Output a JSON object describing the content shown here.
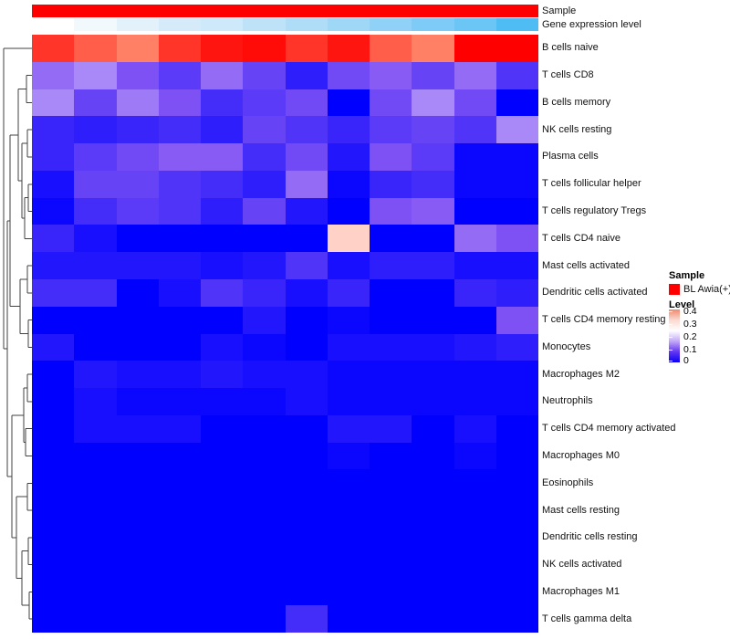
{
  "chart_data": {
    "type": "heatmap",
    "title": "",
    "n_columns": 12,
    "annotation_rows": [
      {
        "label": "Sample",
        "uniform_color": "#FF0000"
      },
      {
        "label": "Gene expression level",
        "column_colors": [
          "#FFFFFF",
          "#F2F9FD",
          "#E3F1FA",
          "#D6EBF9",
          "#CDE9FA",
          "#BEE3F9",
          "#AFDDF8",
          "#9FD7F7",
          "#8FD1F7",
          "#7DCBF6",
          "#6BC5F5",
          "#4FBCF4"
        ]
      }
    ],
    "row_labels": [
      "B cells naive",
      "T cells CD8",
      "B cells memory",
      "NK cells resting",
      "Plasma cells",
      "T cells follicular helper",
      "T cells regulatory  Tregs",
      "T cells CD4 naive",
      "Mast cells activated",
      "Dendritic cells activated",
      "T cells CD4 memory resting",
      "Monocytes",
      "Macrophages M2",
      "Neutrophils",
      "T cells CD4 memory activated",
      "Macrophages M0",
      "Eosinophils",
      "Mast cells resting",
      "Dendritic cells resting",
      "NK cells activated",
      "Macrophages M1",
      "T cells gamma delta"
    ],
    "values": [
      [
        0.41,
        0.37,
        0.34,
        0.41,
        0.44,
        0.45,
        0.41,
        0.44,
        0.37,
        0.34,
        0.46,
        0.46
      ],
      [
        0.13,
        0.15,
        0.11,
        0.08,
        0.13,
        0.09,
        0.04,
        0.1,
        0.12,
        0.09,
        0.13,
        0.07
      ],
      [
        0.15,
        0.09,
        0.14,
        0.11,
        0.06,
        0.08,
        0.1,
        0.0,
        0.1,
        0.15,
        0.1,
        0.0
      ],
      [
        0.05,
        0.04,
        0.05,
        0.06,
        0.04,
        0.09,
        0.07,
        0.05,
        0.08,
        0.09,
        0.07,
        0.15
      ],
      [
        0.05,
        0.08,
        0.1,
        0.12,
        0.12,
        0.06,
        0.1,
        0.03,
        0.11,
        0.08,
        0.01,
        0.01
      ],
      [
        0.02,
        0.09,
        0.09,
        0.07,
        0.06,
        0.04,
        0.13,
        0.01,
        0.05,
        0.06,
        0.01,
        0.01
      ],
      [
        0.01,
        0.06,
        0.08,
        0.07,
        0.04,
        0.09,
        0.03,
        0.0,
        0.11,
        0.12,
        0.0,
        0.0
      ],
      [
        0.05,
        0.02,
        0.0,
        0.0,
        0.0,
        0.0,
        0.0,
        0.27,
        0.0,
        0.0,
        0.13,
        0.11
      ],
      [
        0.03,
        0.03,
        0.03,
        0.03,
        0.02,
        0.03,
        0.07,
        0.02,
        0.04,
        0.04,
        0.02,
        0.02
      ],
      [
        0.06,
        0.06,
        0.0,
        0.02,
        0.07,
        0.05,
        0.02,
        0.05,
        0.0,
        0.0,
        0.05,
        0.04
      ],
      [
        0.0,
        0.0,
        0.0,
        0.0,
        0.0,
        0.03,
        0.0,
        0.01,
        0.0,
        0.0,
        0.0,
        0.11
      ],
      [
        0.03,
        0.0,
        0.0,
        0.0,
        0.02,
        0.01,
        0.0,
        0.02,
        0.02,
        0.02,
        0.03,
        0.04
      ],
      [
        0.0,
        0.03,
        0.02,
        0.02,
        0.03,
        0.02,
        0.02,
        0.01,
        0.01,
        0.01,
        0.01,
        0.01
      ],
      [
        0.0,
        0.02,
        0.01,
        0.01,
        0.01,
        0.01,
        0.02,
        0.01,
        0.01,
        0.01,
        0.01,
        0.01
      ],
      [
        0.0,
        0.02,
        0.02,
        0.02,
        0.0,
        0.0,
        0.0,
        0.03,
        0.03,
        0.0,
        0.02,
        0.0
      ],
      [
        0.0,
        0.0,
        0.0,
        0.0,
        0.0,
        0.0,
        0.0,
        0.01,
        0.0,
        0.0,
        0.01,
        0.0
      ],
      [
        0.0,
        0.0,
        0.0,
        0.0,
        0.0,
        0.0,
        0.0,
        0.0,
        0.0,
        0.0,
        0.0,
        0.0
      ],
      [
        0.0,
        0.0,
        0.0,
        0.0,
        0.0,
        0.0,
        0.0,
        0.0,
        0.0,
        0.0,
        0.0,
        0.0
      ],
      [
        0.0,
        0.0,
        0.0,
        0.0,
        0.0,
        0.0,
        0.0,
        0.0,
        0.0,
        0.0,
        0.0,
        0.0
      ],
      [
        0.0,
        0.0,
        0.0,
        0.0,
        0.0,
        0.0,
        0.0,
        0.0,
        0.0,
        0.0,
        0.0,
        0.0
      ],
      [
        0.0,
        0.0,
        0.0,
        0.0,
        0.0,
        0.0,
        0.0,
        0.0,
        0.0,
        0.0,
        0.0,
        0.0
      ],
      [
        0.0,
        0.0,
        0.0,
        0.0,
        0.0,
        0.0,
        0.06,
        0.0,
        0.0,
        0.0,
        0.0,
        0.0
      ]
    ],
    "colormap": {
      "vmin": 0,
      "vmax": 0.46,
      "stops": [
        {
          "t": 0.0,
          "color": "#0000FF"
        },
        {
          "t": 0.25,
          "color": "#8355F3"
        },
        {
          "t": 0.5,
          "color": "#FFFFFF"
        },
        {
          "t": 0.75,
          "color": "#FF7A5E"
        },
        {
          "t": 1.0,
          "color": "#FF0000"
        }
      ]
    },
    "legend": {
      "sample_title": "Sample",
      "sample_items": [
        {
          "label": "BL Awia(+)",
          "color": "#FF0000"
        }
      ],
      "level_title": "Level",
      "level_ticks": [
        "0.4",
        "0.3",
        "0.2",
        "0.1",
        "0"
      ],
      "level_gradient": [
        {
          "t": 0.0,
          "color": "#EE8A6F"
        },
        {
          "t": 0.2,
          "color": "#FBD9D0"
        },
        {
          "t": 0.4,
          "color": "#FFFFFF"
        },
        {
          "t": 0.6,
          "color": "#C3A9F8"
        },
        {
          "t": 0.8,
          "color": "#6336F2"
        },
        {
          "t": 1.0,
          "color": "#0A00F5"
        }
      ]
    }
  },
  "dendrogram": {
    "line_color": "#424242",
    "tree": {
      "x": 4,
      "children": [
        {
          "row": 0
        },
        {
          "x": 8,
          "children": [
            {
              "x": 11,
              "children": [
                {
                  "x": 20,
                  "children": [
                    {
                      "x": 29,
                      "children": [
                        {
                          "row": 1
                        },
                        {
                          "row": 2
                        }
                      ]
                    },
                    {
                      "x": 24,
                      "children": [
                        {
                          "x": 30,
                          "children": [
                            {
                              "row": 3
                            },
                            {
                              "row": 4
                            }
                          ]
                        },
                        {
                          "x": 27,
                          "children": [
                            {
                              "x": 31,
                              "children": [
                                {
                                  "row": 5
                                },
                                {
                                  "row": 6
                                }
                              ]
                            },
                            {
                              "row": 7
                            }
                          ]
                        }
                      ]
                    }
                  ]
                },
                {
                  "x": 22,
                  "children": [
                    {
                      "x": 30,
                      "children": [
                        {
                          "row": 8
                        },
                        {
                          "row": 9
                        }
                      ]
                    },
                    {
                      "x": 31,
                      "children": [
                        {
                          "row": 10
                        },
                        {
                          "row": 11
                        }
                      ]
                    }
                  ]
                }
              ]
            },
            {
              "x": 13,
              "children": [
                {
                  "x": 26,
                  "children": [
                    {
                      "x": 30,
                      "children": [
                        {
                          "row": 12
                        },
                        {
                          "row": 13
                        }
                      ]
                    },
                    {
                      "x": 28,
                      "children": [
                        {
                          "row": 14
                        },
                        {
                          "row": 15
                        }
                      ]
                    }
                  ]
                },
                {
                  "x": 18,
                  "children": [
                    {
                      "x": 30,
                      "children": [
                        {
                          "row": 16
                        },
                        {
                          "row": 17
                        }
                      ]
                    },
                    {
                      "x": 24,
                      "children": [
                        {
                          "x": 31,
                          "children": [
                            {
                              "row": 18
                            },
                            {
                              "row": 19
                            }
                          ]
                        },
                        {
                          "x": 32,
                          "children": [
                            {
                              "row": 20
                            },
                            {
                              "row": 21
                            }
                          ]
                        }
                      ]
                    }
                  ]
                }
              ]
            }
          ]
        }
      ]
    }
  }
}
